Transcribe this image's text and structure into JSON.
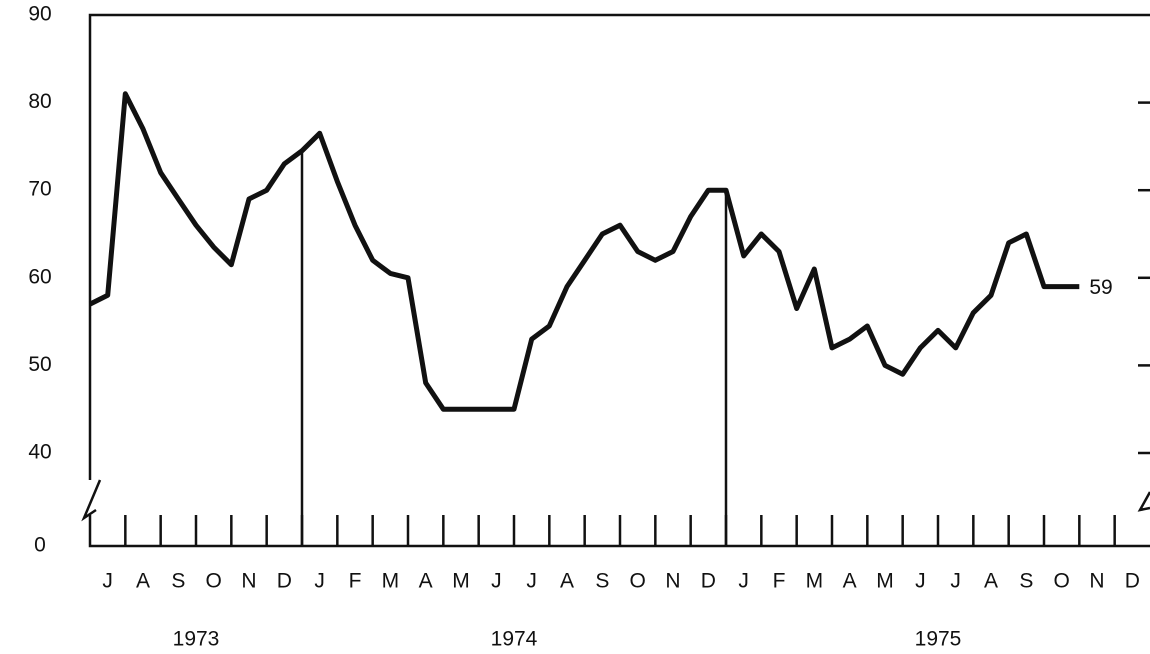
{
  "chart_data": {
    "type": "line",
    "months": [
      "J",
      "A",
      "S",
      "O",
      "N",
      "D",
      "J",
      "F",
      "M",
      "A",
      "M",
      "J",
      "J",
      "A",
      "S",
      "O",
      "N",
      "D",
      "J",
      "F",
      "M",
      "A",
      "M",
      "J",
      "J",
      "A",
      "S",
      "O",
      "N",
      "D"
    ],
    "years": [
      "1973",
      "1974",
      "1975"
    ],
    "values": [
      57,
      58,
      81,
      77,
      72,
      69,
      66,
      63.5,
      61.5,
      69,
      70,
      73,
      74.5,
      76.5,
      71,
      66,
      62,
      60.5,
      60,
      48,
      45,
      45,
      45,
      45,
      45,
      53,
      54.5,
      59,
      62,
      65,
      66,
      63,
      62,
      63,
      67,
      70,
      70,
      62.5,
      65,
      63,
      56.5,
      61,
      52,
      53,
      54.5,
      50,
      49,
      52,
      54,
      52,
      56,
      58,
      64,
      65,
      59,
      59,
      59,
      null,
      null,
      null,
      null
    ],
    "end_label": "59",
    "color": "#111111",
    "ylim": [
      0,
      90
    ],
    "yticks": [
      0,
      40,
      50,
      60,
      70,
      80,
      90
    ],
    "axis_break": true
  }
}
